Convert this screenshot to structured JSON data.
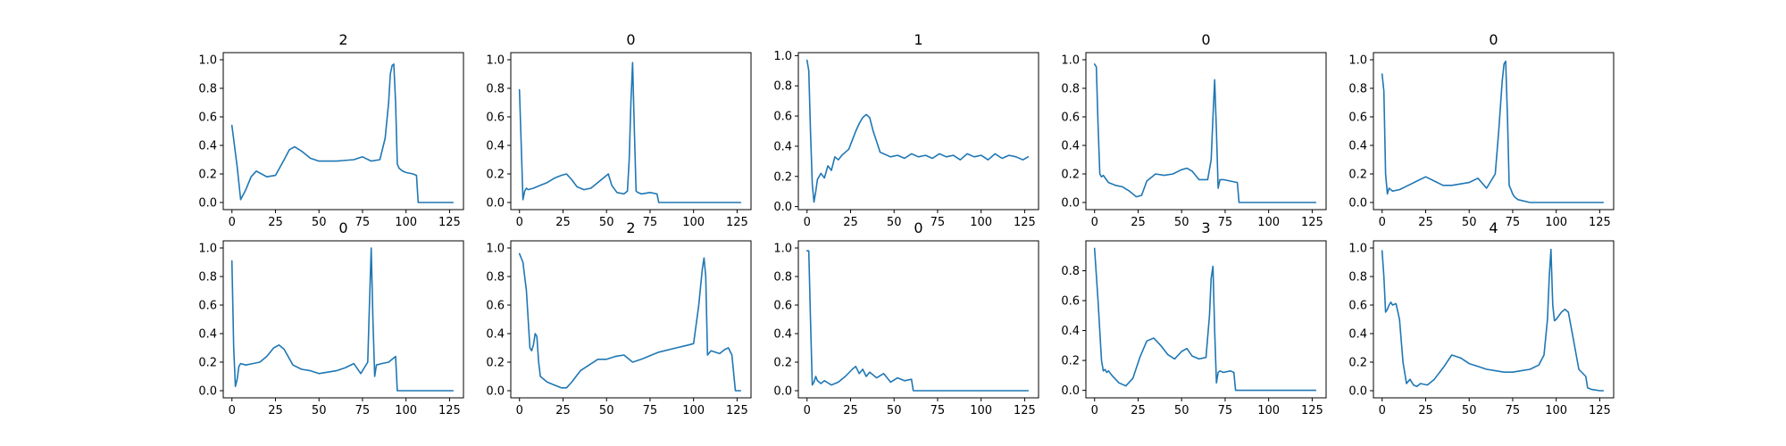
{
  "figure": {
    "line_color": "#1f77b4"
  },
  "chart_data": [
    {
      "type": "line",
      "title": "2",
      "xlim": [
        -5,
        133
      ],
      "ylim": [
        -0.05,
        1.05
      ],
      "xticks": [
        0,
        25,
        50,
        75,
        100,
        125
      ],
      "yticks": [
        0.0,
        0.2,
        0.4,
        0.6,
        0.8,
        1.0
      ],
      "x": [
        0,
        3,
        5,
        8,
        11,
        14,
        17,
        20,
        25,
        30,
        33,
        36,
        40,
        45,
        50,
        60,
        70,
        75,
        80,
        85,
        88,
        90,
        91,
        92,
        93,
        94,
        95,
        96,
        98,
        100,
        104,
        106,
        107,
        110,
        120,
        127
      ],
      "y": [
        0.54,
        0.25,
        0.02,
        0.09,
        0.18,
        0.22,
        0.2,
        0.18,
        0.19,
        0.3,
        0.37,
        0.39,
        0.36,
        0.31,
        0.29,
        0.29,
        0.3,
        0.32,
        0.29,
        0.3,
        0.45,
        0.7,
        0.9,
        0.96,
        0.97,
        0.7,
        0.27,
        0.24,
        0.22,
        0.21,
        0.2,
        0.19,
        0.0,
        0.0,
        0.0,
        0.0
      ]
    },
    {
      "type": "line",
      "title": "0",
      "xlim": [
        -5,
        133
      ],
      "ylim": [
        -0.05,
        1.05
      ],
      "xticks": [
        0,
        25,
        50,
        75,
        100,
        125
      ],
      "yticks": [
        0.0,
        0.2,
        0.4,
        0.6,
        0.8,
        1.0
      ],
      "x": [
        0,
        1,
        2,
        3,
        4,
        5,
        8,
        12,
        16,
        20,
        24,
        27,
        30,
        33,
        37,
        41,
        45,
        49,
        51,
        53,
        56,
        60,
        62,
        63,
        64,
        65,
        66,
        67,
        68,
        70,
        75,
        79,
        80,
        90,
        100,
        110,
        127
      ],
      "y": [
        0.79,
        0.4,
        0.02,
        0.08,
        0.1,
        0.09,
        0.1,
        0.12,
        0.14,
        0.17,
        0.19,
        0.2,
        0.16,
        0.11,
        0.09,
        0.1,
        0.14,
        0.18,
        0.2,
        0.12,
        0.07,
        0.06,
        0.08,
        0.3,
        0.7,
        0.98,
        0.5,
        0.08,
        0.07,
        0.06,
        0.07,
        0.06,
        0.0,
        0.0,
        0.0,
        0.0,
        0.0
      ]
    },
    {
      "type": "line",
      "title": "1",
      "xlim": [
        -5,
        133
      ],
      "ylim": [
        -0.02,
        1.02
      ],
      "xticks": [
        0,
        25,
        50,
        75,
        100,
        125
      ],
      "yticks": [
        0.0,
        0.2,
        0.4,
        0.6,
        0.8,
        1.0
      ],
      "x": [
        0,
        1,
        2,
        3,
        4,
        5,
        6,
        8,
        10,
        12,
        14,
        16,
        18,
        20,
        22,
        24,
        26,
        28,
        30,
        32,
        34,
        36,
        38,
        40,
        42,
        44,
        48,
        52,
        56,
        60,
        64,
        68,
        72,
        76,
        80,
        84,
        88,
        92,
        96,
        100,
        104,
        108,
        112,
        116,
        120,
        124,
        127
      ],
      "y": [
        0.97,
        0.9,
        0.5,
        0.15,
        0.03,
        0.1,
        0.18,
        0.22,
        0.19,
        0.27,
        0.24,
        0.33,
        0.31,
        0.34,
        0.36,
        0.38,
        0.44,
        0.5,
        0.55,
        0.59,
        0.61,
        0.59,
        0.5,
        0.43,
        0.36,
        0.35,
        0.33,
        0.34,
        0.32,
        0.35,
        0.33,
        0.34,
        0.32,
        0.35,
        0.33,
        0.34,
        0.31,
        0.35,
        0.33,
        0.34,
        0.31,
        0.35,
        0.32,
        0.34,
        0.33,
        0.31,
        0.33
      ]
    },
    {
      "type": "line",
      "title": "0",
      "xlim": [
        -5,
        133
      ],
      "ylim": [
        -0.05,
        1.05
      ],
      "xticks": [
        0,
        25,
        50,
        75,
        100,
        125
      ],
      "yticks": [
        0.0,
        0.2,
        0.4,
        0.6,
        0.8,
        1.0
      ],
      "x": [
        0,
        1,
        2,
        3,
        4,
        5,
        8,
        12,
        16,
        20,
        24,
        27,
        30,
        35,
        40,
        45,
        50,
        53,
        56,
        60,
        65,
        67,
        68,
        69,
        70,
        71,
        72,
        74,
        78,
        82,
        83,
        90,
        100,
        110,
        127
      ],
      "y": [
        0.97,
        0.95,
        0.55,
        0.2,
        0.18,
        0.19,
        0.14,
        0.12,
        0.11,
        0.08,
        0.04,
        0.05,
        0.15,
        0.2,
        0.19,
        0.2,
        0.23,
        0.24,
        0.22,
        0.16,
        0.16,
        0.3,
        0.6,
        0.86,
        0.5,
        0.1,
        0.16,
        0.16,
        0.15,
        0.14,
        0.0,
        0.0,
        0.0,
        0.0,
        0.0
      ]
    },
    {
      "type": "line",
      "title": "0",
      "xlim": [
        -5,
        133
      ],
      "ylim": [
        -0.05,
        1.05
      ],
      "xticks": [
        0,
        25,
        50,
        75,
        100,
        125
      ],
      "yticks": [
        0.0,
        0.2,
        0.4,
        0.6,
        0.8,
        1.0
      ],
      "x": [
        0,
        1,
        2,
        3,
        4,
        6,
        10,
        15,
        20,
        25,
        30,
        35,
        40,
        45,
        50,
        55,
        60,
        65,
        67,
        69,
        70,
        71,
        72,
        73,
        74,
        75,
        76,
        78,
        85,
        95,
        105,
        115,
        127
      ],
      "y": [
        0.9,
        0.78,
        0.2,
        0.06,
        0.1,
        0.08,
        0.09,
        0.12,
        0.15,
        0.18,
        0.15,
        0.12,
        0.12,
        0.13,
        0.14,
        0.17,
        0.1,
        0.2,
        0.5,
        0.85,
        0.97,
        0.99,
        0.6,
        0.12,
        0.09,
        0.06,
        0.04,
        0.02,
        0.0,
        0.0,
        0.0,
        0.0,
        0.0
      ]
    },
    {
      "type": "line",
      "title": "0",
      "xlim": [
        -5,
        133
      ],
      "ylim": [
        -0.05,
        1.05
      ],
      "xticks": [
        0,
        25,
        50,
        75,
        100,
        125
      ],
      "yticks": [
        0.0,
        0.2,
        0.4,
        0.6,
        0.8,
        1.0
      ],
      "x": [
        0,
        1,
        2,
        3,
        4,
        5,
        8,
        12,
        16,
        20,
        24,
        27,
        30,
        35,
        40,
        45,
        50,
        55,
        60,
        65,
        70,
        74,
        78,
        79,
        80,
        81,
        82,
        83,
        86,
        90,
        94,
        95,
        100,
        110,
        127
      ],
      "y": [
        0.91,
        0.3,
        0.03,
        0.08,
        0.17,
        0.19,
        0.18,
        0.19,
        0.2,
        0.24,
        0.3,
        0.32,
        0.29,
        0.18,
        0.15,
        0.14,
        0.12,
        0.13,
        0.14,
        0.16,
        0.19,
        0.12,
        0.2,
        0.6,
        1.0,
        0.5,
        0.1,
        0.18,
        0.19,
        0.2,
        0.24,
        0.0,
        0.0,
        0.0,
        0.0
      ]
    },
    {
      "type": "line",
      "title": "2",
      "xlim": [
        -5,
        133
      ],
      "ylim": [
        -0.05,
        1.05
      ],
      "xticks": [
        0,
        25,
        50,
        75,
        100,
        125
      ],
      "yticks": [
        0.0,
        0.2,
        0.4,
        0.6,
        0.8,
        1.0
      ],
      "x": [
        0,
        2,
        4,
        6,
        7,
        8,
        9,
        10,
        11,
        12,
        14,
        16,
        20,
        24,
        27,
        30,
        35,
        40,
        45,
        50,
        55,
        60,
        65,
        70,
        80,
        90,
        97,
        100,
        103,
        105,
        106,
        107,
        108,
        110,
        115,
        118,
        120,
        122,
        124,
        127
      ],
      "y": [
        0.96,
        0.9,
        0.7,
        0.3,
        0.28,
        0.32,
        0.4,
        0.38,
        0.2,
        0.1,
        0.08,
        0.06,
        0.04,
        0.02,
        0.02,
        0.06,
        0.14,
        0.18,
        0.22,
        0.22,
        0.24,
        0.25,
        0.2,
        0.22,
        0.27,
        0.3,
        0.32,
        0.33,
        0.6,
        0.85,
        0.93,
        0.8,
        0.25,
        0.28,
        0.26,
        0.29,
        0.3,
        0.25,
        0.0,
        0.0
      ]
    },
    {
      "type": "line",
      "title": "0",
      "xlim": [
        -5,
        133
      ],
      "ylim": [
        -0.05,
        1.05
      ],
      "xticks": [
        0,
        25,
        50,
        75,
        100,
        125
      ],
      "yticks": [
        0.0,
        0.2,
        0.4,
        0.6,
        0.8,
        1.0
      ],
      "x": [
        0,
        1,
        2,
        3,
        4,
        5,
        6,
        8,
        10,
        14,
        18,
        22,
        26,
        28,
        30,
        32,
        34,
        36,
        40,
        44,
        48,
        52,
        56,
        60,
        61,
        63,
        70,
        80,
        90,
        100,
        110,
        127
      ],
      "y": [
        0.98,
        0.98,
        0.5,
        0.04,
        0.06,
        0.1,
        0.07,
        0.05,
        0.07,
        0.04,
        0.06,
        0.1,
        0.15,
        0.17,
        0.12,
        0.15,
        0.1,
        0.13,
        0.09,
        0.12,
        0.06,
        0.09,
        0.07,
        0.08,
        0.0,
        0.0,
        0.0,
        0.0,
        0.0,
        0.0,
        0.0,
        0.0
      ]
    },
    {
      "type": "line",
      "title": "3",
      "xlim": [
        -5,
        133
      ],
      "ylim": [
        -0.05,
        1.0
      ],
      "xticks": [
        0,
        25,
        50,
        75,
        100,
        125
      ],
      "yticks": [
        0.0,
        0.2,
        0.4,
        0.6,
        0.8
      ],
      "x": [
        0,
        2,
        4,
        5,
        6,
        7,
        8,
        10,
        14,
        18,
        22,
        26,
        30,
        34,
        38,
        42,
        46,
        50,
        53,
        56,
        60,
        64,
        66,
        67,
        68,
        69,
        70,
        71,
        72,
        74,
        78,
        80,
        81,
        82,
        90,
        100,
        110,
        127
      ],
      "y": [
        0.95,
        0.6,
        0.2,
        0.13,
        0.14,
        0.12,
        0.13,
        0.1,
        0.05,
        0.03,
        0.08,
        0.22,
        0.33,
        0.35,
        0.3,
        0.24,
        0.21,
        0.26,
        0.28,
        0.23,
        0.21,
        0.22,
        0.5,
        0.75,
        0.83,
        0.4,
        0.05,
        0.12,
        0.13,
        0.12,
        0.13,
        0.12,
        0.0,
        0.0,
        0.0,
        0.0,
        0.0,
        0.0
      ]
    },
    {
      "type": "line",
      "title": "4",
      "xlim": [
        -5,
        133
      ],
      "ylim": [
        -0.05,
        1.05
      ],
      "xticks": [
        0,
        25,
        50,
        75,
        100,
        125
      ],
      "yticks": [
        0.0,
        0.2,
        0.4,
        0.6,
        0.8,
        1.0
      ],
      "x": [
        0,
        1,
        2,
        3,
        4,
        5,
        6,
        8,
        10,
        12,
        14,
        16,
        18,
        20,
        22,
        26,
        30,
        35,
        40,
        45,
        50,
        55,
        60,
        65,
        70,
        75,
        80,
        85,
        90,
        93,
        95,
        96,
        97,
        98,
        99,
        100,
        103,
        105,
        107,
        110,
        113,
        117,
        118,
        120,
        125,
        127
      ],
      "y": [
        0.98,
        0.8,
        0.55,
        0.57,
        0.6,
        0.62,
        0.6,
        0.61,
        0.5,
        0.2,
        0.05,
        0.08,
        0.04,
        0.03,
        0.05,
        0.04,
        0.08,
        0.16,
        0.25,
        0.23,
        0.19,
        0.17,
        0.15,
        0.14,
        0.13,
        0.13,
        0.14,
        0.15,
        0.18,
        0.25,
        0.5,
        0.8,
        0.99,
        0.6,
        0.49,
        0.5,
        0.55,
        0.57,
        0.55,
        0.35,
        0.15,
        0.1,
        0.02,
        0.01,
        0.0,
        0.0
      ]
    }
  ]
}
